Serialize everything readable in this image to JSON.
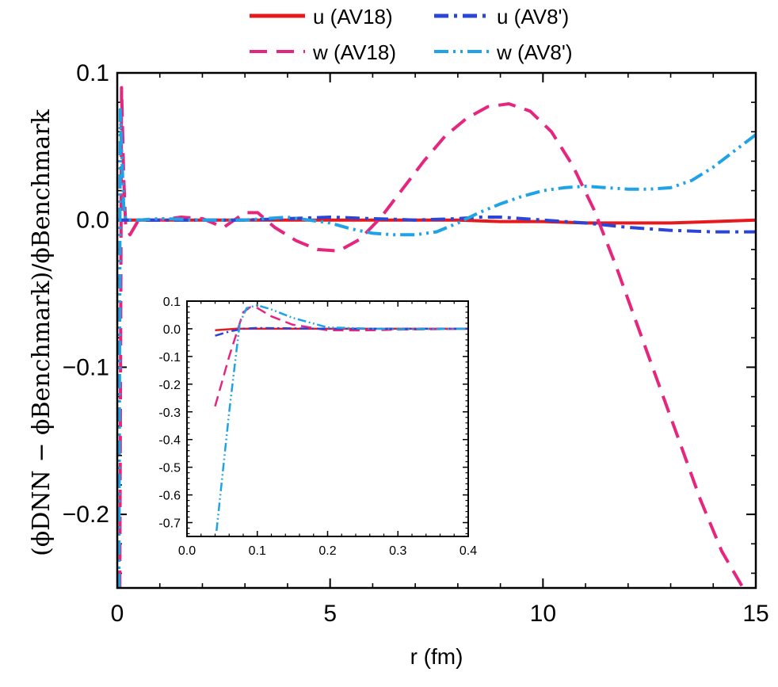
{
  "chart_data": [
    {
      "type": "line",
      "xlabel": "r (fm)",
      "ylabel": "(ϕDNN − ϕBenchmark)/ϕBenchmark",
      "xlim": [
        0,
        15
      ],
      "ylim": [
        -0.25,
        0.1
      ],
      "xticks": [
        0,
        5,
        10,
        15
      ],
      "xtick_labels": [
        "0",
        "5",
        "10",
        "15"
      ],
      "yticks": [
        0.1,
        0.0,
        -0.1,
        -0.2
      ],
      "ytick_labels": [
        "0.1",
        "0.0",
        "−0.1",
        "−0.2"
      ],
      "legend_position": "top",
      "series": [
        {
          "name": "u (AV18)",
          "color": "#e8191c",
          "dash": "solid",
          "x": [
            0,
            0.3,
            1,
            2,
            3,
            4,
            5,
            6,
            7,
            8,
            9,
            10,
            11,
            12,
            13,
            14,
            15
          ],
          "y": [
            0,
            0,
            0,
            0,
            0,
            0,
            0,
            0,
            0,
            0,
            -0.001,
            -0.001,
            -0.002,
            -0.002,
            -0.002,
            -0.001,
            0
          ]
        },
        {
          "name": "w (AV18)",
          "color": "#e5267f",
          "dash": "dashed",
          "x": [
            0.06,
            0.1,
            0.15,
            0.2,
            0.3,
            0.5,
            1,
            1.5,
            2,
            2.5,
            3,
            3.3,
            3.7,
            4.2,
            4.7,
            5.2,
            5.7,
            6.2,
            6.7,
            7.2,
            7.7,
            8.2,
            8.7,
            9.2,
            9.7,
            10.2,
            10.7,
            11.2,
            11.7,
            12.2,
            12.7,
            13.2,
            13.7,
            14.2,
            14.7,
            15
          ],
          "y": [
            -0.25,
            0.09,
            0.03,
            -0.005,
            -0.01,
            0.0,
            0.0,
            0.002,
            0.001,
            -0.005,
            0.005,
            0.005,
            -0.005,
            -0.014,
            -0.02,
            -0.021,
            -0.013,
            0.002,
            0.021,
            0.04,
            0.057,
            0.069,
            0.077,
            0.079,
            0.074,
            0.06,
            0.037,
            0.007,
            -0.03,
            -0.07,
            -0.11,
            -0.15,
            -0.19,
            -0.225,
            -0.25,
            -0.26
          ]
        },
        {
          "name": "u (AV8')",
          "color": "#2b45d6",
          "dash": "dashdot",
          "x": [
            0,
            0.3,
            1,
            2,
            3,
            4,
            5,
            6,
            7,
            8,
            8.5,
            9,
            10,
            11,
            12,
            13,
            14,
            15
          ],
          "y": [
            0,
            0,
            0,
            0,
            0,
            0.001,
            0.002,
            0.001,
            0,
            0.001,
            0.002,
            0.002,
            0,
            -0.002,
            -0.005,
            -0.007,
            -0.008,
            -0.008
          ]
        },
        {
          "name": "w (AV8')",
          "color": "#1fa3e6",
          "dash": "dashdotdot",
          "x": [
            0.04,
            0.07,
            0.1,
            0.15,
            0.2,
            0.3,
            0.5,
            1,
            2,
            3,
            4,
            5,
            5.5,
            6,
            6.5,
            7,
            7.5,
            8,
            8.5,
            9,
            9.5,
            10,
            10.5,
            11,
            11.5,
            12,
            12.5,
            13,
            13.5,
            14,
            14.5,
            15
          ],
          "y": [
            -0.25,
            0.075,
            0.05,
            0.01,
            0.0,
            0.0,
            0.0,
            0.001,
            0.0,
            0.0,
            0.002,
            -0.002,
            -0.006,
            -0.009,
            -0.01,
            -0.01,
            -0.008,
            -0.002,
            0.005,
            0.011,
            0.016,
            0.02,
            0.022,
            0.023,
            0.022,
            0.021,
            0.021,
            0.022,
            0.027,
            0.036,
            0.047,
            0.058
          ]
        }
      ]
    },
    {
      "type": "line",
      "xlim": [
        0,
        0.4
      ],
      "ylim": [
        -0.75,
        0.1
      ],
      "xticks": [
        0,
        0.1,
        0.2,
        0.3,
        0.4
      ],
      "xtick_labels": [
        "0.0",
        "0.1",
        "0.2",
        "0.3",
        "0.4"
      ],
      "yticks": [
        0.1,
        0.0,
        -0.1,
        -0.2,
        -0.3,
        -0.4,
        -0.5,
        -0.6,
        -0.7
      ],
      "ytick_labels": [
        "0.1",
        "0.0",
        "-0.1",
        "-0.2",
        "-0.3",
        "-0.4",
        "-0.5",
        "-0.6",
        "-0.7"
      ],
      "series": [
        {
          "name": "u (AV18)",
          "color": "#e8191c",
          "dash": "solid",
          "x": [
            0.04,
            0.07,
            0.1,
            0.2,
            0.3,
            0.4
          ],
          "y": [
            -0.005,
            0.0,
            0.0,
            0.0,
            0.0,
            0.0
          ]
        },
        {
          "name": "w (AV18)",
          "color": "#e5267f",
          "dash": "dashed",
          "x": [
            0.04,
            0.06,
            0.08,
            0.09,
            0.1,
            0.12,
            0.15,
            0.2,
            0.25,
            0.3,
            0.4
          ],
          "y": [
            -0.28,
            -0.1,
            0.06,
            0.078,
            0.075,
            0.045,
            0.015,
            -0.005,
            -0.006,
            -0.003,
            0.0
          ]
        },
        {
          "name": "u (AV8')",
          "color": "#2b45d6",
          "dash": "dashdot",
          "x": [
            0.04,
            0.06,
            0.08,
            0.1,
            0.2,
            0.3,
            0.4
          ],
          "y": [
            -0.025,
            -0.01,
            0.0,
            0.003,
            0.0,
            0.0,
            0.0
          ]
        },
        {
          "name": "w (AV8')",
          "color": "#1fa3e6",
          "dash": "dashdotdot",
          "x": [
            0.042,
            0.06,
            0.075,
            0.085,
            0.1,
            0.12,
            0.15,
            0.2,
            0.3,
            0.4
          ],
          "y": [
            -0.73,
            -0.3,
            0.02,
            0.075,
            0.085,
            0.07,
            0.04,
            0.005,
            -0.002,
            0.0
          ]
        }
      ]
    }
  ]
}
